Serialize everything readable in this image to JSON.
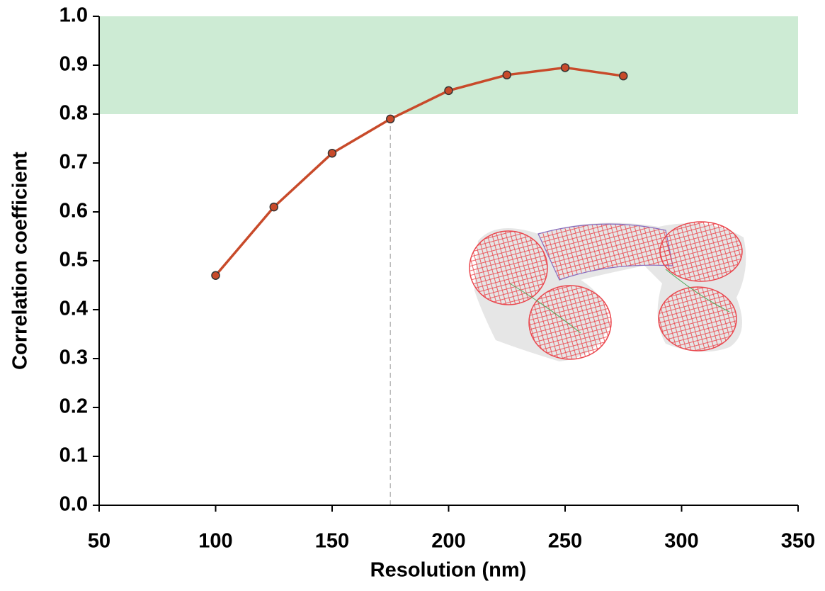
{
  "chart_data": {
    "type": "line",
    "x_label": "Resolution (nm)",
    "y_label": "Correlation coefficient",
    "x": [
      100,
      125,
      150,
      175,
      200,
      225,
      250,
      275
    ],
    "series": [
      {
        "color": "#c84a2a",
        "values": [
          0.47,
          0.61,
          0.72,
          0.79,
          0.848,
          0.88,
          0.895,
          0.878
        ]
      }
    ],
    "xlim": [
      50,
      350
    ],
    "xticks": [
      50,
      100,
      150,
      200,
      250,
      300,
      350
    ],
    "ylim": [
      0,
      1
    ],
    "yticks": [
      {
        "value": 0,
        "label": "0.0"
      },
      0.1,
      0.2,
      0.3,
      0.4,
      0.5,
      0.6,
      0.7,
      0.8,
      0.9,
      {
        "value": 1,
        "label": "1.0"
      }
    ],
    "band": {
      "range": [
        0.8,
        1
      ],
      "color": "#cdebd4"
    },
    "reference_x": 175
  }
}
